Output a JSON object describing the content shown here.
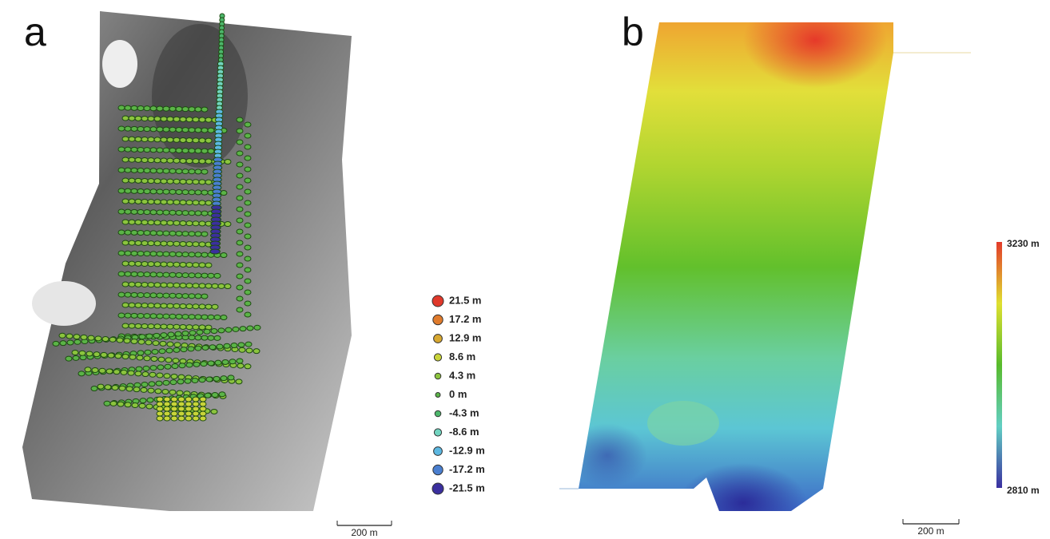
{
  "panel_a": {
    "label": "a",
    "legend": [
      {
        "label": "21.5 m",
        "color": "#e0392b"
      },
      {
        "label": "17.2 m",
        "color": "#e07b2c"
      },
      {
        "label": "12.9 m",
        "color": "#d8a830"
      },
      {
        "label": "8.6 m",
        "color": "#c9d43a"
      },
      {
        "label": "4.3 m",
        "color": "#8cc43e"
      },
      {
        "label": "0 m",
        "color": "#5bb447"
      },
      {
        "label": "-4.3 m",
        "color": "#4db76c"
      },
      {
        "label": "-8.6 m",
        "color": "#72d4c0"
      },
      {
        "label": "-12.9 m",
        "color": "#5cb8e2"
      },
      {
        "label": "-17.2 m",
        "color": "#4a7fd0"
      },
      {
        "label": "-21.5 m",
        "color": "#3b2f9e"
      }
    ],
    "scale_bar": "200 m"
  },
  "panel_b": {
    "label": "b",
    "colorbar": {
      "max_label": "3230 m",
      "min_label": "2810 m"
    },
    "scale_bar": "200 m"
  }
}
